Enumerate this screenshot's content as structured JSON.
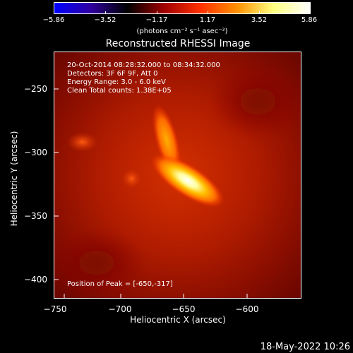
{
  "colorbar": {
    "tick_labels": [
      "−5.86",
      "−3.52",
      "−1.17",
      "1.17",
      "3.52",
      "5.86"
    ],
    "units": "(photons cm⁻² s⁻¹ asec⁻²)"
  },
  "title": "Reconstructed RHESSI Image",
  "info": {
    "time": "20-Oct-2014 08:28:32.000 to 08:34:32.000",
    "detectors": "Detectors: 3F 6F 9F, Att 0",
    "energy": "Energy Range: 3.0 - 6.0 keV",
    "clean": "Clean    Total counts: 1.38E+05"
  },
  "peak": "Position of Peak = [-650,-317]",
  "axes": {
    "x_ticks": [
      "−750",
      "−700",
      "−650",
      "−600"
    ],
    "y_ticks": [
      "−250",
      "−300",
      "−350",
      "−400"
    ],
    "x_label": "Heliocentric X (arcsec)",
    "y_label": "Heliocentric Y (arcsec)"
  },
  "timestamp": "18-May-2022 10:26",
  "colors": {
    "colorbar_stops": [
      "#0000ff",
      "#3000a0",
      "#000000",
      "#a00000",
      "#ff3000",
      "#ff9000",
      "#ffff80",
      "#ffffff"
    ]
  }
}
